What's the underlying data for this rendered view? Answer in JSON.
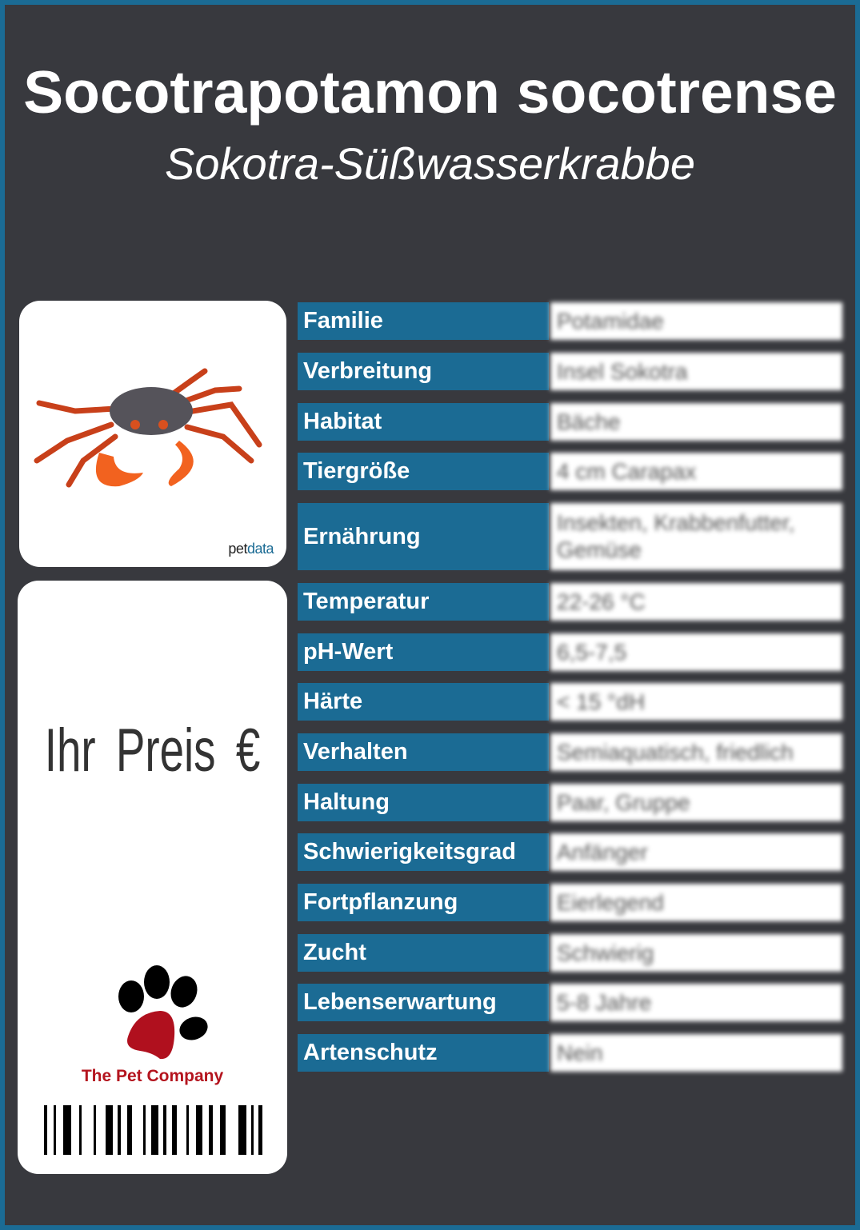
{
  "header": {
    "title": "Socotrapotamon socotrense",
    "subtitle": "Sokotra-Süßwasserkrabbe"
  },
  "photo": {
    "credit_prefix": "pet",
    "credit_suffix": "data"
  },
  "price": {
    "label": "Ihr Preis €"
  },
  "brand": {
    "name": "The Pet Company"
  },
  "colors": {
    "accent": "#1b6b94",
    "background": "#38393e",
    "brand_red": "#b4141e"
  },
  "rows": [
    {
      "label": "Familie",
      "value": "Potamidae"
    },
    {
      "label": "Verbreitung",
      "value": "Insel Sokotra"
    },
    {
      "label": "Habitat",
      "value": "Bäche"
    },
    {
      "label": "Tiergröße",
      "value": "4 cm Carapax"
    },
    {
      "label": "Ernährung",
      "value": "Insekten, Krabbenfutter, Gemüse"
    },
    {
      "label": "Temperatur",
      "value": "22-26 °C"
    },
    {
      "label": "pH-Wert",
      "value": "6,5-7,5"
    },
    {
      "label": "Härte",
      "value": "< 15 °dH"
    },
    {
      "label": "Verhalten",
      "value": "Semiaquatisch, friedlich"
    },
    {
      "label": "Haltung",
      "value": "Paar, Gruppe"
    },
    {
      "label": "Schwierigkeitsgrad",
      "value": "Anfänger"
    },
    {
      "label": "Fortpflanzung",
      "value": "Eierlegend"
    },
    {
      "label": "Zucht",
      "value": "Schwierig"
    },
    {
      "label": "Lebenserwartung",
      "value": "5-8 Jahre"
    },
    {
      "label": "Artenschutz",
      "value": "Nein"
    }
  ]
}
